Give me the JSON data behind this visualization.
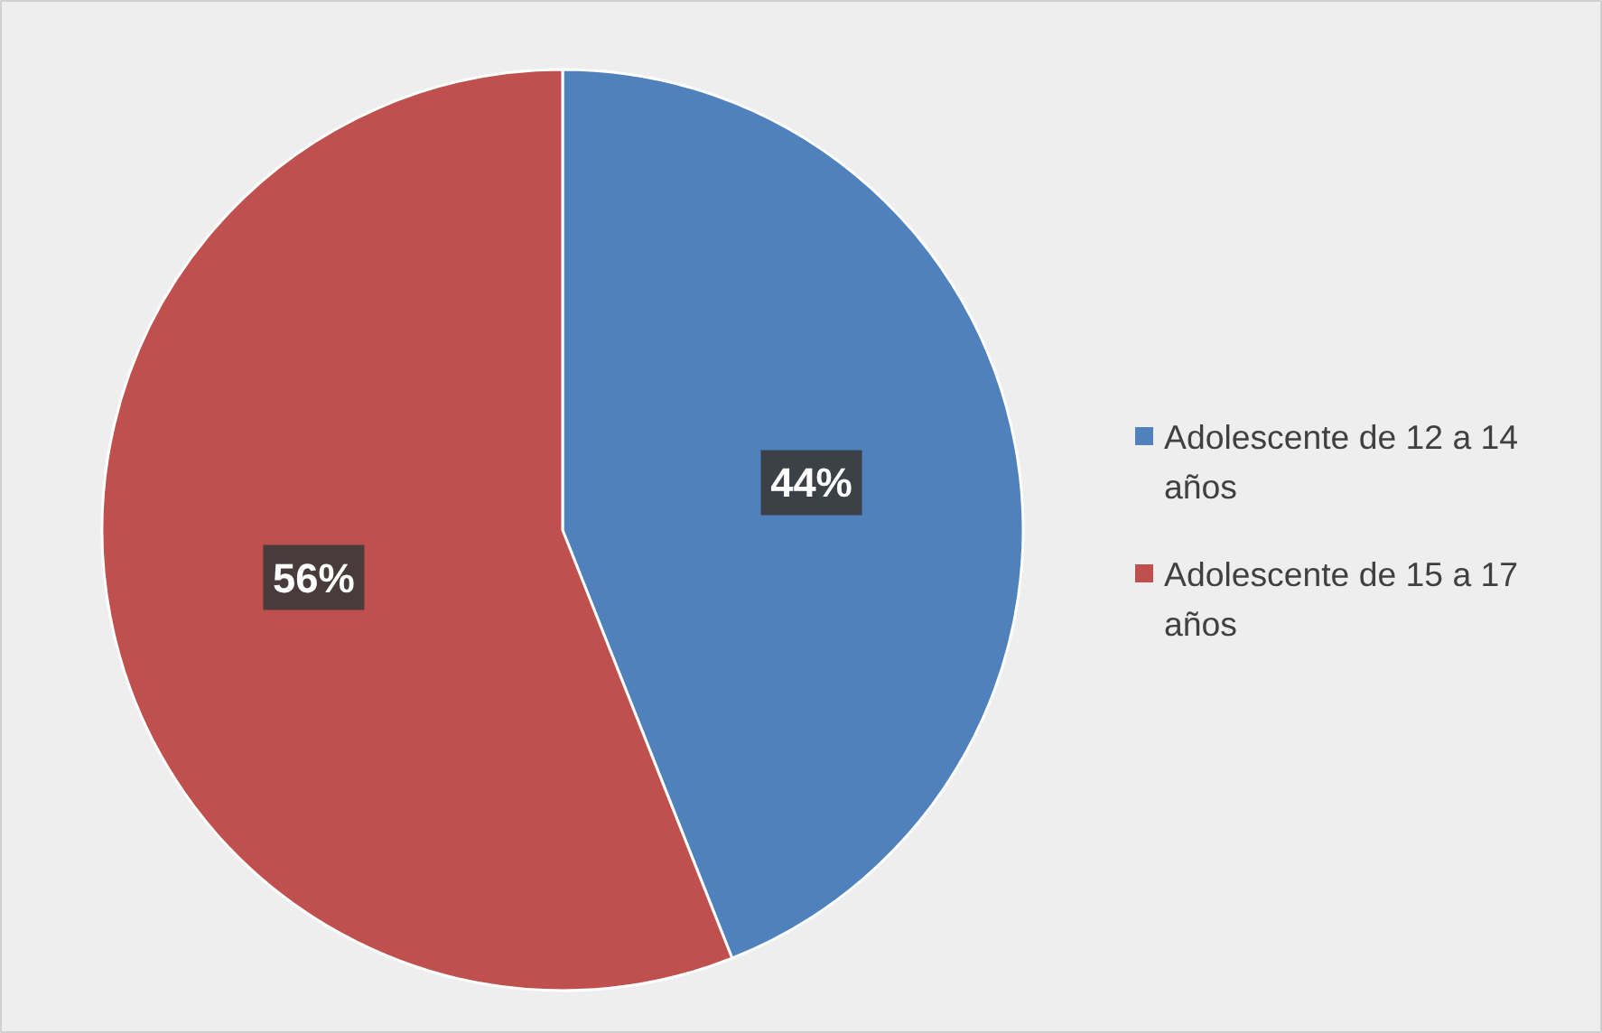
{
  "chart_data": {
    "type": "pie",
    "categories": [
      "Adolescente de 12 a 14 años",
      "Adolescente de 15 a 17 años"
    ],
    "values": [
      44,
      56
    ],
    "colors": [
      "#4f81bd",
      "#c0504d"
    ],
    "value_labels": [
      "44%",
      "56%"
    ],
    "legend": "right"
  }
}
